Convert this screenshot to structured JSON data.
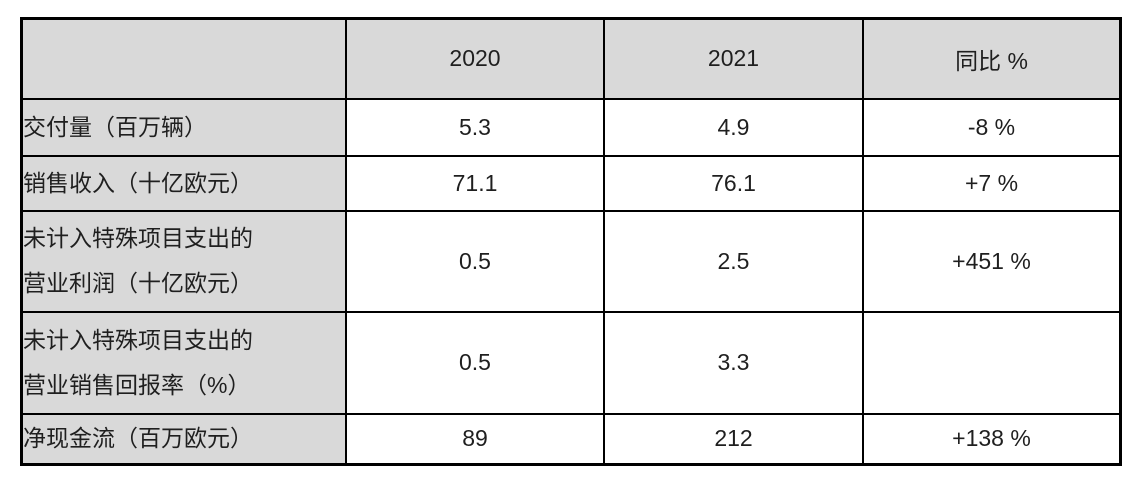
{
  "colors": {
    "border": "#000000",
    "header_background": "#d9d9d9",
    "cell_background": "#ffffff",
    "text": "#1f1f1f"
  },
  "table": {
    "columns": [
      "",
      "2020",
      "2021",
      "同比 %"
    ],
    "rows": [
      {
        "label": "交付量（百万辆）",
        "values": [
          "5.3",
          "4.9",
          "-8 %"
        ]
      },
      {
        "label": "销售收入（十亿欧元）",
        "values": [
          "71.1",
          "76.1",
          "+7 %"
        ]
      },
      {
        "label": "未计入特殊项目支出的\n营业利润（十亿欧元）",
        "values": [
          "0.5",
          "2.5",
          "+451 %"
        ]
      },
      {
        "label": "未计入特殊项目支出的\n营业销售回报率（%）",
        "values": [
          "0.5",
          "3.3",
          ""
        ]
      },
      {
        "label": "净现金流（百万欧元）",
        "values": [
          "89",
          "212",
          "+138 %"
        ]
      }
    ]
  }
}
